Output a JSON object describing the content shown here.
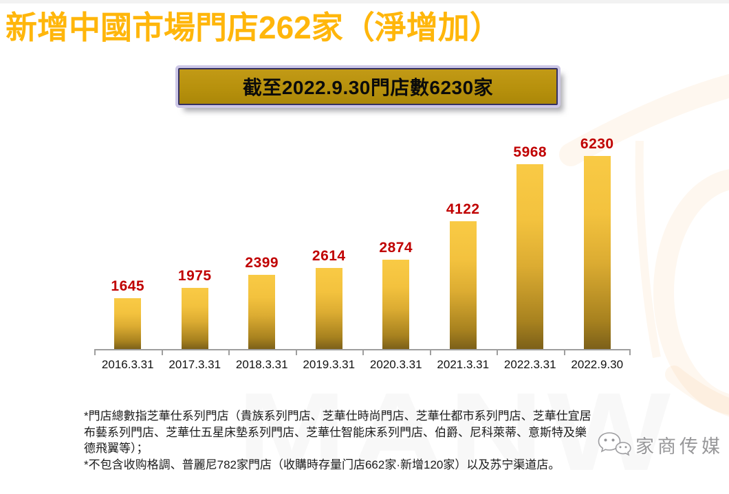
{
  "page": {
    "title": "新增中國市場門店262家（淨增加）",
    "banner": "截至2022.9.30門店數6230家"
  },
  "chart_data": {
    "type": "bar",
    "categories": [
      "2016.3.31",
      "2017.3.31",
      "2018.3.31",
      "2019.3.31",
      "2020.3.31",
      "2021.3.31",
      "2022.3.31",
      "2022.9.30"
    ],
    "values": [
      1645,
      1975,
      2399,
      2614,
      2874,
      4122,
      5968,
      6230
    ],
    "title": "截至2022.9.30門店數6230家",
    "xlabel": "",
    "ylabel": "",
    "ylim": [
      0,
      6600
    ],
    "grid": false,
    "legend": null,
    "data_labels": true,
    "bar_gradient_top": "#F9CA45",
    "bar_gradient_bottom": "#7C6019",
    "data_label_color": "#C00000",
    "axis_color": "#9E9E9E"
  },
  "footnotes": {
    "lines": [
      "*門店總數指芝華仕系列門店（貴族系列門店、芝華仕時尚門店、芝華仕都市系列門店、芝華仕宜居",
      "布藝系列門店、芝華仕五星床墊系列門店、芝華仕智能床系列門店、伯爵、尼科萊蒂、意斯特及樂",
      "德飛翼等）；",
      "*不包含收购格調、普麗尼782家門店（收購時存量门店662家·新增120家）以及苏宁渠道店。"
    ]
  },
  "watermark": {
    "media_logo_text": "家商传媒",
    "background_letters": "MANW"
  },
  "colors": {
    "title_gold": "#FFB60B",
    "banner_gold": "#B7910D",
    "banner_border_dark": "#343061",
    "banner_border_light": "#CDC7E6",
    "data_label_red": "#C00000",
    "swoosh_orange": "#F7941D"
  }
}
